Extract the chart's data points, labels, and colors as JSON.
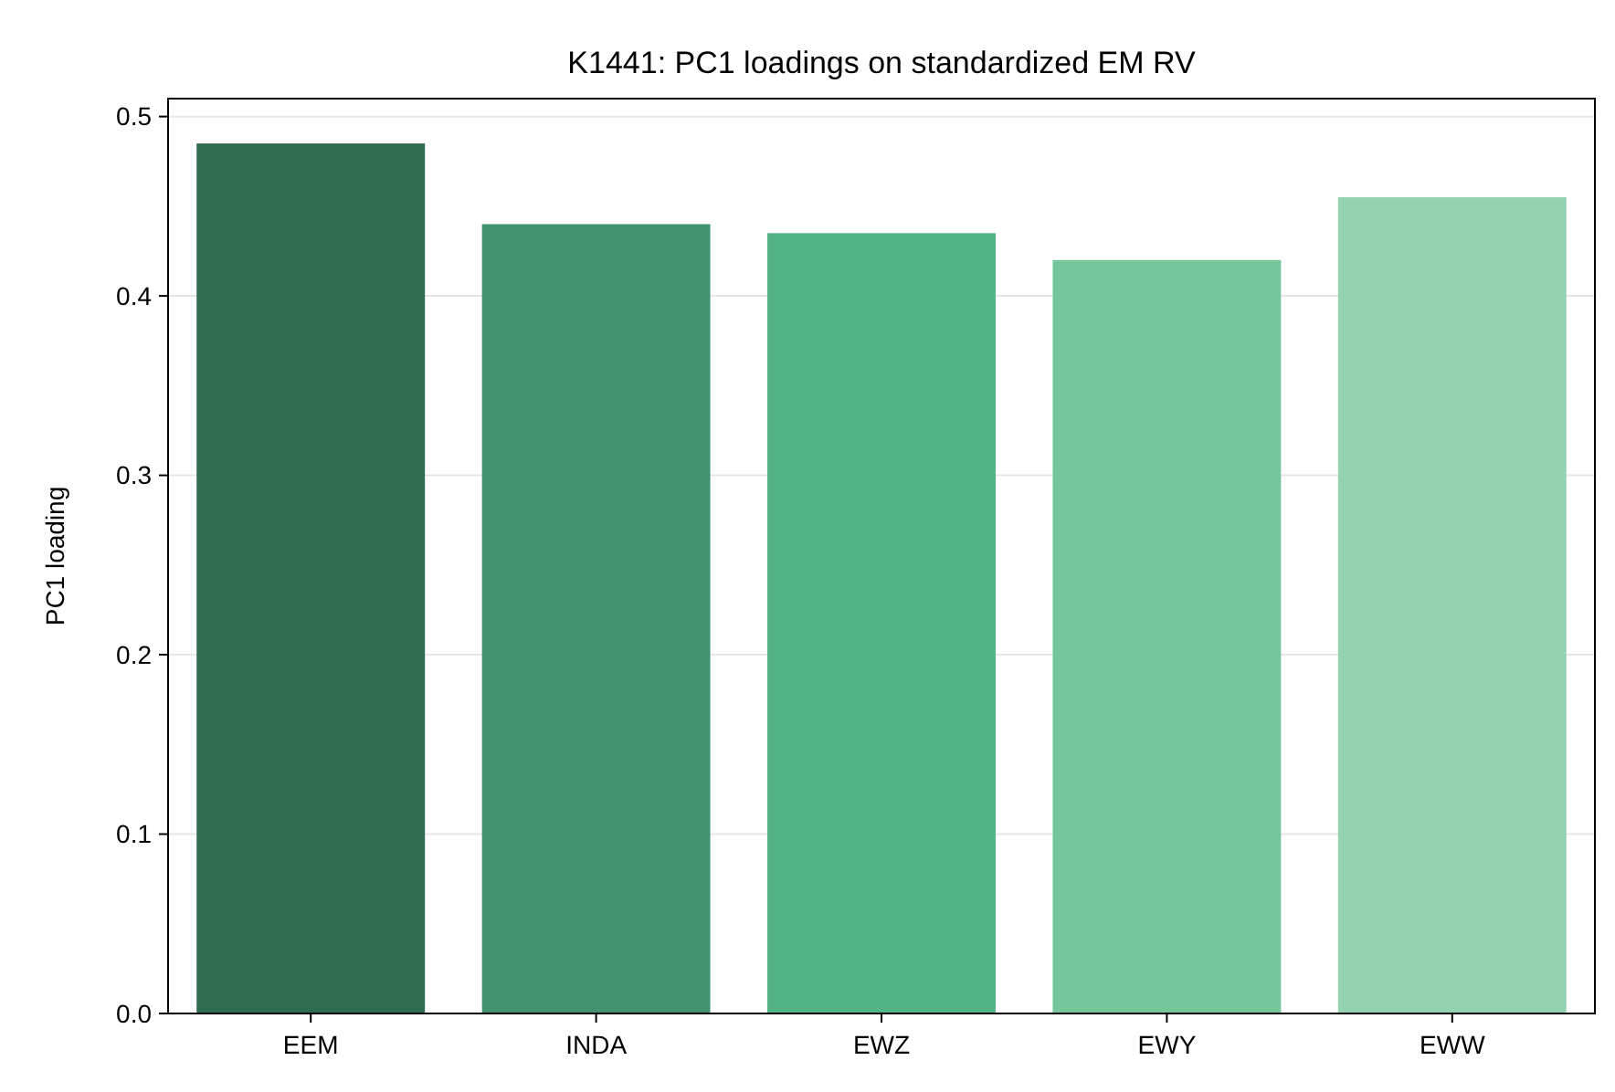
{
  "chart_data": {
    "type": "bar",
    "title": "K1441: PC1 loadings on standardized EM RV",
    "ylabel": "PC1 loading",
    "categories": [
      "EEM",
      "INDA",
      "EWZ",
      "EWY",
      "EWW"
    ],
    "values": [
      0.485,
      0.44,
      0.435,
      0.42,
      0.455
    ],
    "colors": [
      "#2e6b50",
      "#42936f",
      "#52b486",
      "#76c69c",
      "#95d3b0"
    ],
    "ylim": [
      0,
      0.51
    ],
    "yticks": [
      {
        "value": 0,
        "label": "0.0"
      },
      {
        "value": 0.1,
        "label": "0.1"
      },
      {
        "value": 0.2,
        "label": "0.2"
      },
      {
        "value": 0.3,
        "label": "0.3"
      },
      {
        "value": 0.4,
        "label": "0.4"
      },
      {
        "value": 0.5,
        "label": "0.5"
      }
    ],
    "grid": "y"
  }
}
